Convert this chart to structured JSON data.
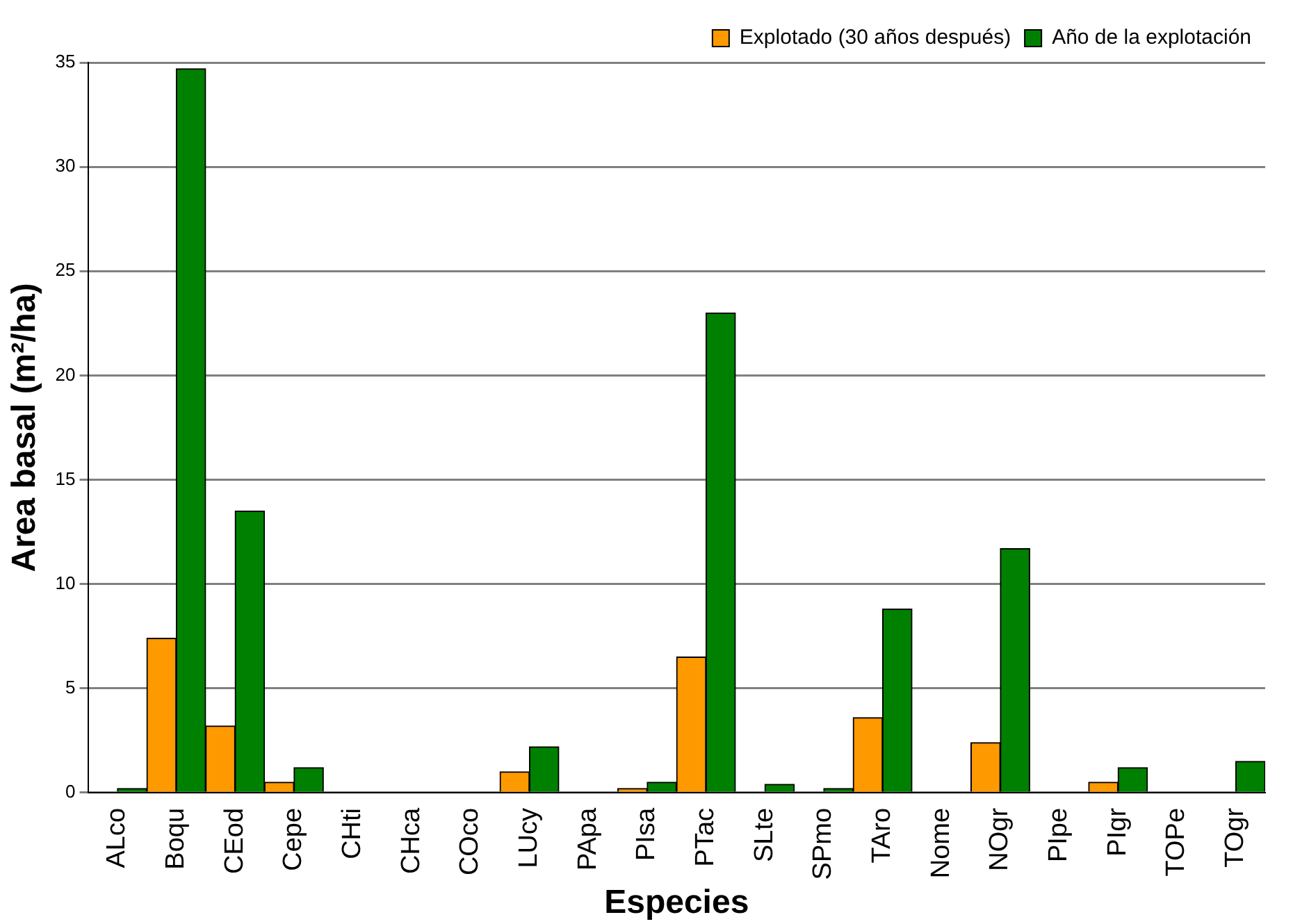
{
  "chart_data": {
    "type": "bar",
    "xlabel": "Especies",
    "ylabel": "Area basal (m²/ha)",
    "categories": [
      "ALco",
      "Boqu",
      "CEod",
      "Cepe",
      "CHti",
      "CHca",
      "COco",
      "LUcy",
      "PApa",
      "PIsa",
      "PTac",
      "SLte",
      "SPmo",
      "TAro",
      "Nome",
      "NOgr",
      "PIpe",
      "PIgr",
      "TOPe",
      "TOgr"
    ],
    "series": [
      {
        "name": "Explotado (30 años después)",
        "color": "#ff9900",
        "values": [
          0,
          7.4,
          3.2,
          0.5,
          0,
          0,
          0,
          1.0,
          0,
          0.2,
          6.5,
          0,
          0,
          3.6,
          0,
          2.4,
          0,
          0.5,
          0,
          0
        ]
      },
      {
        "name": "Año de la explotación",
        "color": "#008000",
        "values": [
          0.2,
          34.7,
          13.5,
          1.2,
          0,
          0,
          0,
          2.2,
          0,
          0.5,
          23.0,
          0.4,
          0.2,
          8.8,
          0,
          11.7,
          0,
          1.2,
          0,
          1.5
        ]
      }
    ],
    "ylim": [
      0,
      35
    ],
    "yticks": [
      0,
      5,
      10,
      15,
      20,
      25,
      30,
      35
    ],
    "grid": "y",
    "legend": "top right"
  }
}
